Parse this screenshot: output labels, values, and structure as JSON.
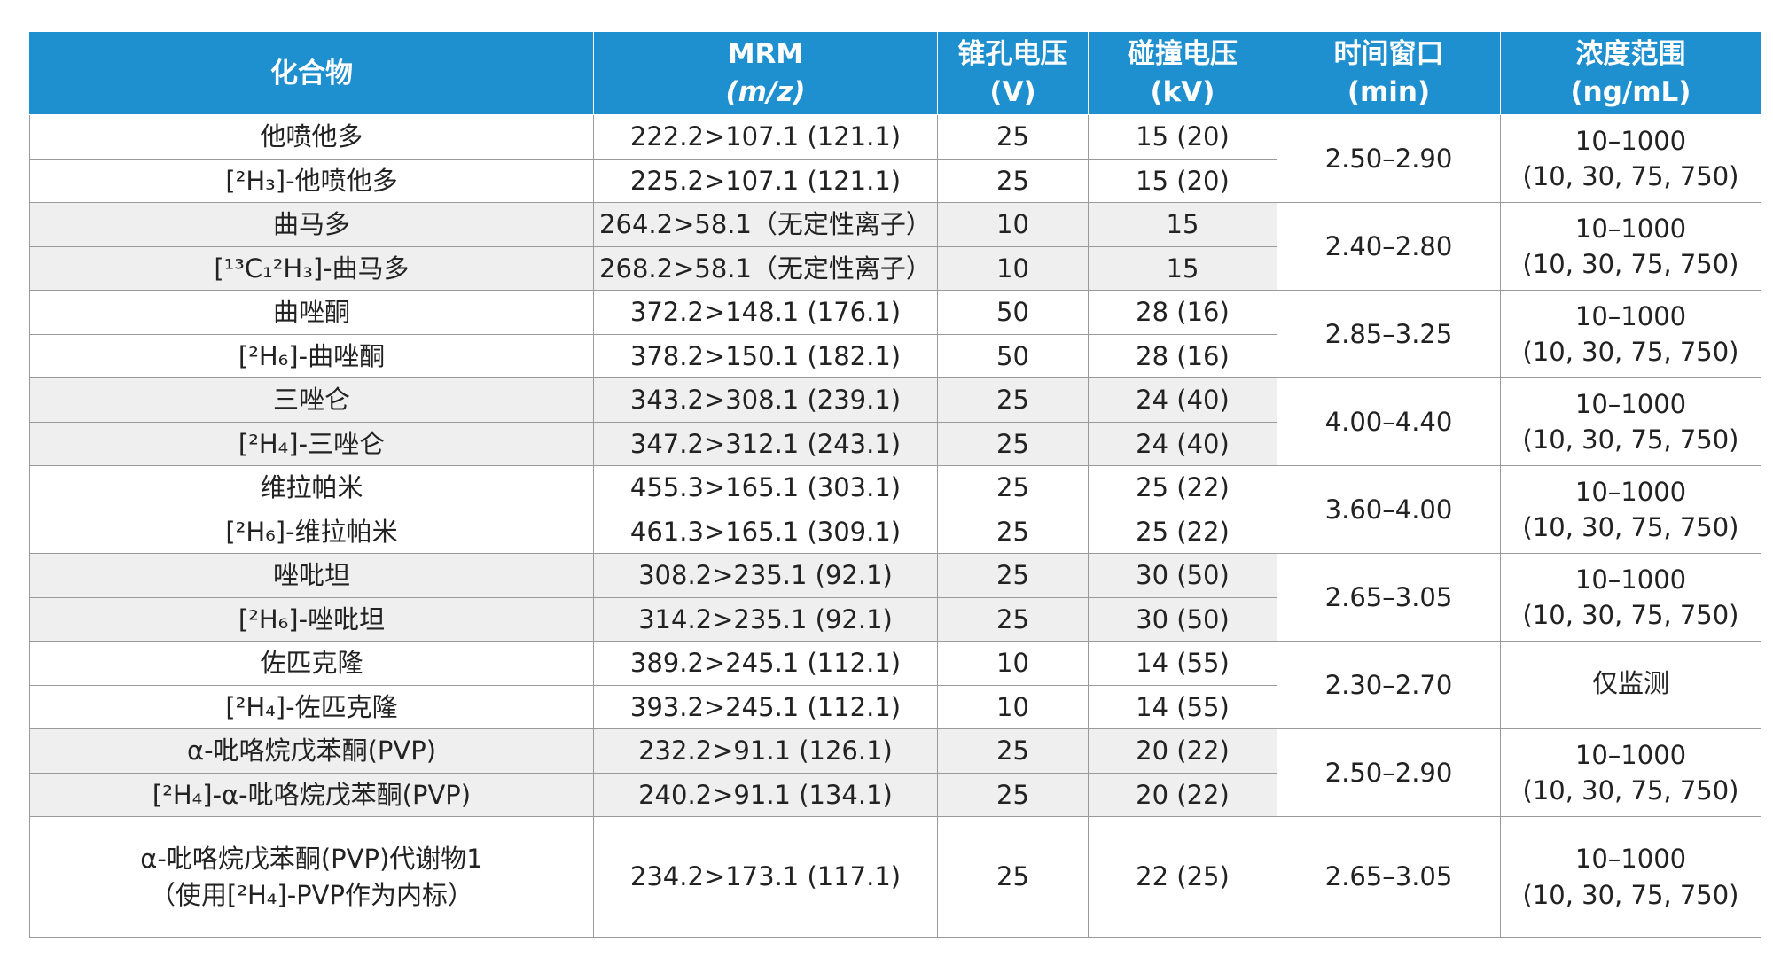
{
  "headers": {
    "compound": "化合物",
    "mrm": {
      "l1": "MRM",
      "l2": "(m/z)"
    },
    "cone": {
      "l1": "锥孔电压",
      "l2": "(V)"
    },
    "collision": {
      "l1": "碰撞电压",
      "l2": "(kV)"
    },
    "window": {
      "l1": "时间窗口",
      "l2": "(min)"
    },
    "range": {
      "l1": "浓度范围",
      "l2": "(ng/mL)"
    }
  },
  "groups": [
    {
      "window": "2.50–2.90",
      "range": {
        "l1": "10–1000",
        "l2": "(10, 30, 75, 750)"
      },
      "rows": [
        {
          "compound": "他喷他多",
          "mrm": "222.2>107.1 (121.1)",
          "cone": "25",
          "collision": "15 (20)"
        },
        {
          "compound": "[²H₃]-他喷他多",
          "mrm": "225.2>107.1 (121.1)",
          "cone": "25",
          "collision": "15 (20)"
        }
      ]
    },
    {
      "window": "2.40–2.80",
      "range": {
        "l1": "10–1000",
        "l2": "(10, 30, 75, 750)"
      },
      "rows": [
        {
          "compound": "曲马多",
          "mrm": "264.2>58.1（无定性离子）",
          "cone": "10",
          "collision": "15"
        },
        {
          "compound": "[¹³C₁²H₃]-曲马多",
          "mrm": "268.2>58.1（无定性离子）",
          "cone": "10",
          "collision": "15"
        }
      ]
    },
    {
      "window": "2.85–3.25",
      "range": {
        "l1": "10–1000",
        "l2": "(10, 30, 75, 750)"
      },
      "rows": [
        {
          "compound": "曲唑酮",
          "mrm": "372.2>148.1 (176.1)",
          "cone": "50",
          "collision": "28 (16)"
        },
        {
          "compound": "[²H₆]-曲唑酮",
          "mrm": "378.2>150.1 (182.1)",
          "cone": "50",
          "collision": "28 (16)"
        }
      ]
    },
    {
      "window": "4.00–4.40",
      "range": {
        "l1": "10–1000",
        "l2": "(10, 30, 75, 750)"
      },
      "rows": [
        {
          "compound": "三唑仑",
          "mrm": "343.2>308.1 (239.1)",
          "cone": "25",
          "collision": "24 (40)"
        },
        {
          "compound": "[²H₄]-三唑仑",
          "mrm": "347.2>312.1 (243.1)",
          "cone": "25",
          "collision": "24 (40)"
        }
      ]
    },
    {
      "window": "3.60–4.00",
      "range": {
        "l1": "10–1000",
        "l2": "(10, 30, 75, 750)"
      },
      "rows": [
        {
          "compound": "维拉帕米",
          "mrm": "455.3>165.1 (303.1)",
          "cone": "25",
          "collision": "25 (22)"
        },
        {
          "compound": "[²H₆]-维拉帕米",
          "mrm": "461.3>165.1 (309.1)",
          "cone": "25",
          "collision": "25 (22)"
        }
      ]
    },
    {
      "window": "2.65–3.05",
      "range": {
        "l1": "10–1000",
        "l2": "(10, 30, 75, 750)"
      },
      "rows": [
        {
          "compound": "唑吡坦",
          "mrm": "308.2>235.1 (92.1)",
          "cone": "25",
          "collision": "30 (50)"
        },
        {
          "compound": "[²H₆]-唑吡坦",
          "mrm": "314.2>235.1 (92.1)",
          "cone": "25",
          "collision": "30 (50)"
        }
      ]
    },
    {
      "window": "2.30–2.70",
      "range": {
        "l1": "仅监测",
        "l2": ""
      },
      "rows": [
        {
          "compound": "佐匹克隆",
          "mrm": "389.2>245.1 (112.1)",
          "cone": "10",
          "collision": "14 (55)"
        },
        {
          "compound": "[²H₄]-佐匹克隆",
          "mrm": "393.2>245.1 (112.1)",
          "cone": "10",
          "collision": "14 (55)"
        }
      ]
    },
    {
      "window": "2.50–2.90",
      "range": {
        "l1": "10–1000",
        "l2": "(10, 30, 75, 750)"
      },
      "rows": [
        {
          "compound": "α-吡咯烷戊苯酮(PVP)",
          "mrm": "232.2>91.1 (126.1)",
          "cone": "25",
          "collision": "20 (22)"
        },
        {
          "compound": "[²H₄]-α-吡咯烷戊苯酮(PVP)",
          "mrm": "240.2>91.1 (134.1)",
          "cone": "25",
          "collision": "20 (22)"
        }
      ]
    }
  ],
  "last_row": {
    "compound": {
      "l1": "α-吡咯烷戊苯酮(PVP)代谢物1",
      "l2": "（使用[²H₄]-PVP作为内标）"
    },
    "mrm": "234.2>173.1 (117.1)",
    "cone": "25",
    "collision": "22 (25)",
    "window": "2.65–3.05",
    "range": {
      "l1": "10–1000",
      "l2": "(10, 30, 75, 750)"
    }
  }
}
